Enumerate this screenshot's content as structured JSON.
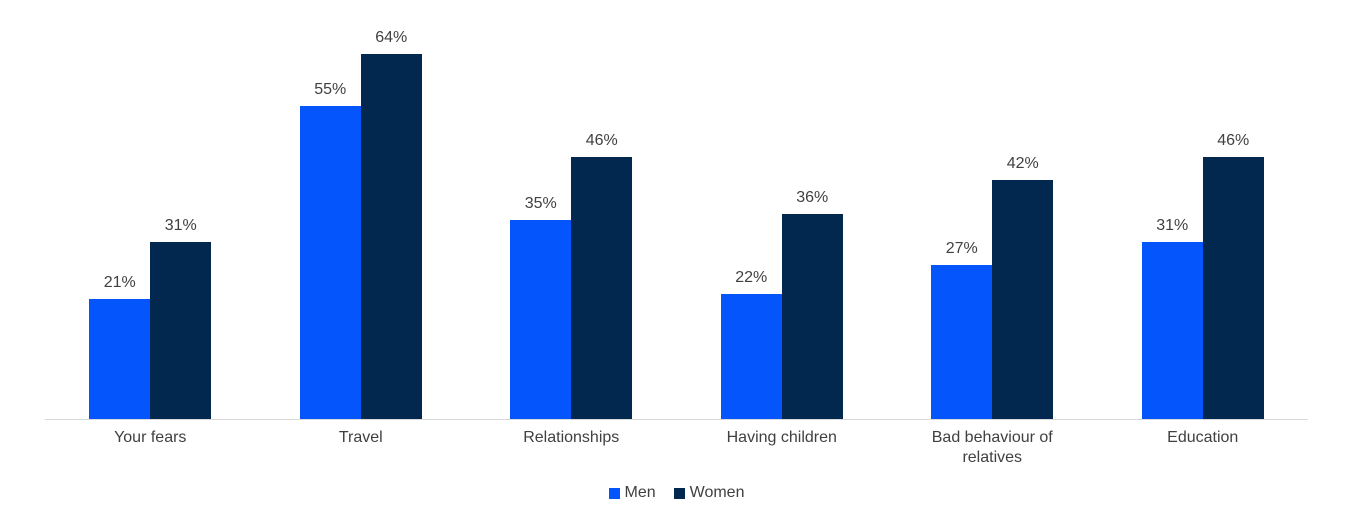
{
  "chart_data": {
    "type": "bar",
    "categories": [
      "Your fears",
      "Travel",
      "Relationships",
      "Having children",
      "Bad behaviour of relatives",
      "Education"
    ],
    "series": [
      {
        "name": "Men",
        "color": "#0455FC",
        "values": [
          21,
          55,
          35,
          22,
          27,
          31
        ]
      },
      {
        "name": "Women",
        "color": "#03284F",
        "values": [
          31,
          64,
          46,
          36,
          42,
          46
        ]
      }
    ],
    "title": "",
    "xlabel": "",
    "ylabel": "",
    "ylim": [
      0,
      70
    ],
    "value_label_format": "{v}%",
    "grid": false,
    "legend_position": "bottom-center",
    "axis_line_color": "#D9D9D9",
    "label_text_color": "#404040",
    "background_color": "#FFFFFF"
  }
}
